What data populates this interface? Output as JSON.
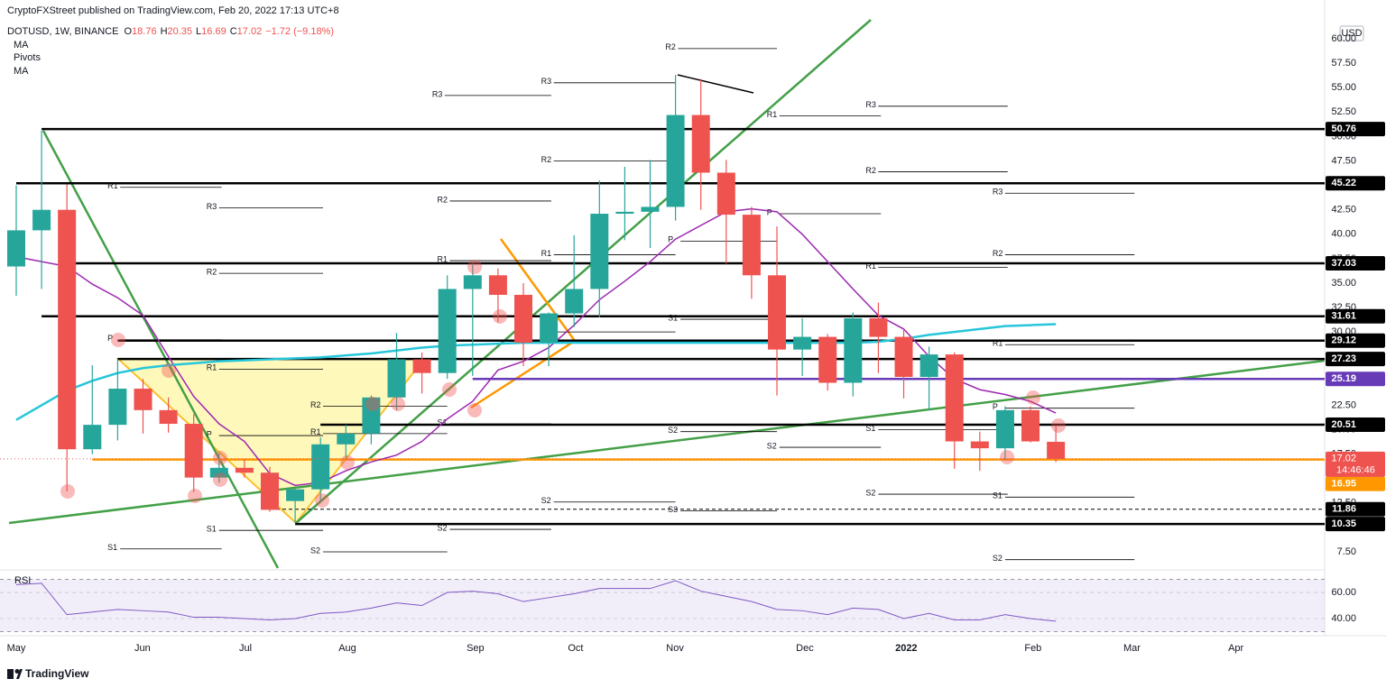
{
  "header": {
    "publisher": "CryptoFXStreet published on TradingView.com, Feb 20, 2022 17:13 UTC+8"
  },
  "footer": {
    "brand": "TradingView"
  },
  "chart_data": {
    "type": "candlestick",
    "symbol": "DOTUSD, 1W, BINANCE",
    "ohlc_legend": [
      {
        "key": "O",
        "value": 18.76
      },
      {
        "key": "H",
        "value": 20.35
      },
      {
        "key": "L",
        "value": 16.69
      },
      {
        "key": "C",
        "value": 17.02
      }
    ],
    "change": "−1.72 (−9.18%)",
    "pivots_name": "Pivots",
    "currency": "USD",
    "up_color": "#26a69a",
    "down_color": "#ef5350",
    "open": [
      36.7,
      40.4,
      42.5,
      18.0,
      20.5,
      24.2,
      22.0,
      20.6,
      15.1,
      16.1,
      15.6,
      12.7,
      13.9,
      18.5,
      19.6,
      23.3,
      27.2,
      25.8,
      34.4,
      35.8,
      33.8,
      28.9,
      31.9,
      34.4,
      42.1,
      42.3,
      42.8,
      52.2,
      46.3,
      42.0,
      35.8,
      28.2,
      29.5,
      24.8,
      31.4,
      29.5,
      25.4,
      27.7,
      18.8,
      18.1,
      22.0,
      18.76
    ],
    "high": [
      45.0,
      50.6,
      45.1,
      26.6,
      27.2,
      25.2,
      23.3,
      21.6,
      17.6,
      17.0,
      16.2,
      14.0,
      19.2,
      20.5,
      23.5,
      29.9,
      27.9,
      35.8,
      37.0,
      36.5,
      35.0,
      32.0,
      39.9,
      45.5,
      46.9,
      47.6,
      56.3,
      55.9,
      47.6,
      42.8,
      40.8,
      31.4,
      29.8,
      32.0,
      33.0,
      30.3,
      28.5,
      27.9,
      19.8,
      22.4,
      22.4,
      20.35
    ],
    "low": [
      33.7,
      34.4,
      13.7,
      17.5,
      18.9,
      19.6,
      19.7,
      13.6,
      14.6,
      15.1,
      11.6,
      10.4,
      12.6,
      17.0,
      18.5,
      22.0,
      23.7,
      25.2,
      25.5,
      31.0,
      26.5,
      26.5,
      30.5,
      31.5,
      39.4,
      38.6,
      41.4,
      42.5,
      37.0,
      33.4,
      23.5,
      25.5,
      24.0,
      23.4,
      25.8,
      23.2,
      22.0,
      16.0,
      15.8,
      16.9,
      18.7,
      16.69
    ],
    "close": [
      40.4,
      42.5,
      18.0,
      20.5,
      24.2,
      22.0,
      20.6,
      15.1,
      16.1,
      15.6,
      11.8,
      13.9,
      18.5,
      19.6,
      23.3,
      27.2,
      25.8,
      34.4,
      35.8,
      33.8,
      28.9,
      31.9,
      34.4,
      42.1,
      42.3,
      42.8,
      52.2,
      46.3,
      42.0,
      35.8,
      28.2,
      29.5,
      24.8,
      31.4,
      29.5,
      25.4,
      27.7,
      18.8,
      18.1,
      22.0,
      18.8,
      17.02
    ],
    "series": [
      {
        "name": "MA",
        "color": "#9c27b0",
        "values": [
          37.7,
          37.2,
          36.7,
          34.9,
          33.5,
          31.7,
          27.5,
          23.4,
          20.6,
          18.8,
          15.5,
          14.3,
          14.6,
          15.8,
          16.7,
          17.4,
          18.8,
          21.1,
          22.9,
          26.1,
          27.0,
          28.4,
          30.7,
          33.3,
          35.2,
          37.2,
          39.5,
          40.9,
          42.3,
          42.6,
          42.3,
          40.0,
          37.2,
          34.4,
          31.7,
          30.3,
          27.5,
          25.2,
          24.1,
          23.6,
          22.9,
          21.7
        ]
      },
      {
        "name": "MA",
        "color": "#26c6da",
        "values": [
          21.0,
          22.5,
          24.0,
          25.0,
          25.8,
          26.3,
          26.6,
          26.8,
          27.0,
          27.1,
          27.2,
          27.3,
          27.4,
          27.6,
          27.8,
          28.1,
          28.4,
          28.6,
          28.7,
          28.8,
          28.9,
          28.9,
          28.9,
          28.9,
          28.9,
          28.9,
          28.9,
          28.9,
          28.9,
          28.9,
          28.9,
          28.9,
          28.9,
          28.9,
          29.0,
          29.3,
          29.7,
          30.0,
          30.3,
          30.6,
          30.7,
          30.8
        ]
      }
    ],
    "ylim": [
      5.84,
      63.97
    ],
    "yticks": [
      {
        "value": 7.5,
        "label": "7.50"
      },
      {
        "value": 10,
        "label": "10.00"
      },
      {
        "value": 12.5,
        "label": "12.50"
      },
      {
        "value": 15,
        "label": "15.00"
      },
      {
        "value": 17.5,
        "label": "17.50"
      },
      {
        "value": 20,
        "label": "20.00"
      },
      {
        "value": 22.5,
        "label": "22.50"
      },
      {
        "value": 25,
        "label": "25.00"
      },
      {
        "value": 27.5,
        "label": "27.50"
      },
      {
        "value": 30,
        "label": "30.00"
      },
      {
        "value": 32.5,
        "label": "32.50"
      },
      {
        "value": 35,
        "label": "35.00"
      },
      {
        "value": 37.5,
        "label": "37.50"
      },
      {
        "value": 40,
        "label": "40.00"
      },
      {
        "value": 42.5,
        "label": "42.50"
      },
      {
        "value": 45,
        "label": "45.00"
      },
      {
        "value": 47.5,
        "label": "47.50"
      },
      {
        "value": 50,
        "label": "50.00"
      },
      {
        "value": 52.5,
        "label": "52.50"
      },
      {
        "value": 55,
        "label": "55.00"
      },
      {
        "value": 57.5,
        "label": "57.50"
      },
      {
        "value": 60,
        "label": "60.00"
      }
    ],
    "xlim": [
      -0.64,
      51.6
    ],
    "xticks": [
      {
        "value": 0,
        "label": "May"
      },
      {
        "value": 4.98,
        "label": "Jun"
      },
      {
        "value": 9.04,
        "label": "Jul"
      },
      {
        "value": 13.06,
        "label": "Aug"
      },
      {
        "value": 18.11,
        "label": "Sep"
      },
      {
        "value": 22.06,
        "label": "Oct"
      },
      {
        "value": 25.98,
        "label": "Nov"
      },
      {
        "value": 31.1,
        "label": "Dec"
      },
      {
        "value": 35.1,
        "label": "2022"
      },
      {
        "value": 40.1,
        "label": "Feb"
      },
      {
        "value": 44.0,
        "label": "Mar"
      },
      {
        "value": 48.1,
        "label": "Apr"
      }
    ],
    "levels": [
      {
        "value": 50.76,
        "from": 1,
        "color": "#000000"
      },
      {
        "value": 45.22,
        "from": 0,
        "color": "#000000"
      },
      {
        "value": 37.03,
        "from": 2,
        "color": "#000000"
      },
      {
        "value": 31.61,
        "from": 1,
        "color": "#000000"
      },
      {
        "value": 29.12,
        "from": 4,
        "color": "#000000"
      },
      {
        "value": 27.23,
        "from": 4,
        "color": "#000000"
      },
      {
        "value": 25.19,
        "from": 18,
        "color": "#673ab7"
      },
      {
        "value": 20.51,
        "from": 12,
        "color": "#000000"
      },
      {
        "value": 16.95,
        "from": 3,
        "color": "#ff9800"
      },
      {
        "value": 11.86,
        "from": 10,
        "color": "#000000",
        "dashed": true
      },
      {
        "value": 10.35,
        "from": 11,
        "color": "#000000"
      }
    ],
    "last_price": {
      "value": 17.02,
      "countdown": "14:46:46",
      "color": "#ef5350"
    },
    "pivots": [
      {
        "label": "R2",
        "value": 59.0,
        "from": 25.6,
        "to": 30.0
      },
      {
        "label": "R3",
        "value": 55.5,
        "from": 20.7,
        "to": 26.0
      },
      {
        "label": "R3",
        "value": 54.2,
        "from": 16.4,
        "to": 21.1
      },
      {
        "label": "R1",
        "value": 52.1,
        "from": 29.6,
        "to": 34.1
      },
      {
        "label": "R3",
        "value": 53.1,
        "from": 33.5,
        "to": 39.1
      },
      {
        "label": "R1",
        "value": 44.8,
        "from": 3.6,
        "to": 8.1
      },
      {
        "label": "R2",
        "value": 47.5,
        "from": 20.7,
        "to": 26.0
      },
      {
        "label": "R2",
        "value": 46.4,
        "from": 33.5,
        "to": 39.1
      },
      {
        "label": "R3",
        "value": 44.2,
        "from": 38.5,
        "to": 44.1
      },
      {
        "label": "R3",
        "value": 42.7,
        "from": 7.5,
        "to": 12.1
      },
      {
        "label": "R2",
        "value": 43.4,
        "from": 16.6,
        "to": 21.1
      },
      {
        "label": "P",
        "value": 42.1,
        "from": 29.6,
        "to": 34.1
      },
      {
        "label": "P",
        "value": 39.3,
        "from": 25.7,
        "to": 30.0
      },
      {
        "label": "R1",
        "value": 37.9,
        "from": 20.7,
        "to": 26.0
      },
      {
        "label": "R2",
        "value": 37.9,
        "from": 38.5,
        "to": 44.1
      },
      {
        "label": "R2",
        "value": 36.0,
        "from": 7.5,
        "to": 12.1
      },
      {
        "label": "R1",
        "value": 37.3,
        "from": 16.6,
        "to": 21.1
      },
      {
        "label": "R1",
        "value": 36.6,
        "from": 33.5,
        "to": 39.1
      },
      {
        "label": "S1",
        "value": 31.3,
        "from": 25.7,
        "to": 30.0
      },
      {
        "label": "P",
        "value": 30.0,
        "from": 20.7,
        "to": 26.0
      },
      {
        "label": "R1",
        "value": 28.7,
        "from": 38.5,
        "to": 44.1
      },
      {
        "label": "P",
        "value": 29.2,
        "from": 3.6,
        "to": 8.1
      },
      {
        "label": "R1",
        "value": 26.2,
        "from": 7.5,
        "to": 12.1
      },
      {
        "label": "R2",
        "value": 22.4,
        "from": 11.6,
        "to": 17.0
      },
      {
        "label": "P",
        "value": 22.2,
        "from": 38.5,
        "to": 44.1
      },
      {
        "label": "S1",
        "value": 20.6,
        "from": 16.6,
        "to": 21.1
      },
      {
        "label": "S1",
        "value": 20.0,
        "from": 33.5,
        "to": 39.1
      },
      {
        "label": "S2",
        "value": 19.8,
        "from": 25.7,
        "to": 30.0
      },
      {
        "label": "R1",
        "value": 19.6,
        "from": 11.6,
        "to": 17.0
      },
      {
        "label": "P",
        "value": 19.4,
        "from": 7.5,
        "to": 12.1
      },
      {
        "label": "S2",
        "value": 18.2,
        "from": 29.6,
        "to": 34.1
      },
      {
        "label": "S2",
        "value": 13.4,
        "from": 33.5,
        "to": 39.1
      },
      {
        "label": "S1",
        "value": 13.1,
        "from": 38.5,
        "to": 44.1
      },
      {
        "label": "S2",
        "value": 12.6,
        "from": 20.7,
        "to": 26.0
      },
      {
        "label": "S3",
        "value": 11.7,
        "from": 25.7,
        "to": 30.0
      },
      {
        "label": "S1",
        "value": 9.7,
        "from": 7.5,
        "to": 12.1
      },
      {
        "label": "S2",
        "value": 9.8,
        "from": 16.6,
        "to": 21.1
      },
      {
        "label": "S1",
        "value": 7.8,
        "from": 3.6,
        "to": 8.1
      },
      {
        "label": "S2",
        "value": 7.5,
        "from": 11.6,
        "to": 17.0
      },
      {
        "label": "S2",
        "value": 6.7,
        "from": 38.5,
        "to": 44.1
      }
    ],
    "rsi": {
      "label": "RSI",
      "color": "#7e57c2",
      "values": [
        66,
        67,
        43,
        45,
        47,
        46,
        45,
        41,
        41,
        40,
        39,
        40,
        44,
        45,
        48,
        52,
        50,
        60,
        61,
        59,
        53,
        56,
        59,
        63,
        63,
        63,
        69,
        61,
        57,
        53,
        47,
        46,
        43,
        48,
        47,
        40,
        44,
        39,
        39,
        43,
        40,
        38
      ],
      "ylim": [
        26.9,
        74.5
      ],
      "yticks": [
        {
          "value": 60,
          "label": "60.00"
        },
        {
          "value": 40,
          "label": "40.00"
        }
      ],
      "band": [
        30,
        70
      ]
    }
  }
}
